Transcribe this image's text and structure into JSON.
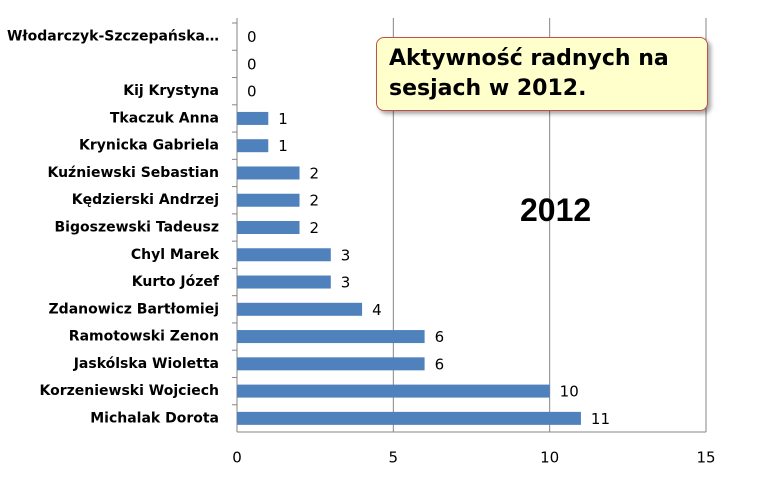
{
  "chart_data": {
    "type": "barh",
    "title": "Aktywność radnych na sesjach w 2012.",
    "annotation": "2012",
    "categories": [
      "Włodarczyk-Szczepańska…",
      null,
      "Kij Krystyna",
      "Tkaczuk Anna",
      "Krynicka Gabriela",
      "Kuźniewski Sebastian",
      "Kędzierski Andrzej",
      "Bigoszewski Tadeusz",
      "Chyl Marek",
      "Kurto Józef",
      "Zdanowicz Bartłomiej",
      "Ramotowski Zenon",
      "Jaskólska Wioletta",
      "Korzeniewski Wojciech",
      "Michalak Dorota"
    ],
    "values": [
      0,
      0,
      0,
      1,
      1,
      2,
      2,
      2,
      3,
      3,
      4,
      6,
      6,
      10,
      11
    ],
    "color": "#4f81bd",
    "xlim": [
      0,
      15
    ],
    "xticks": [
      0,
      5,
      10,
      15
    ],
    "grid": true
  }
}
